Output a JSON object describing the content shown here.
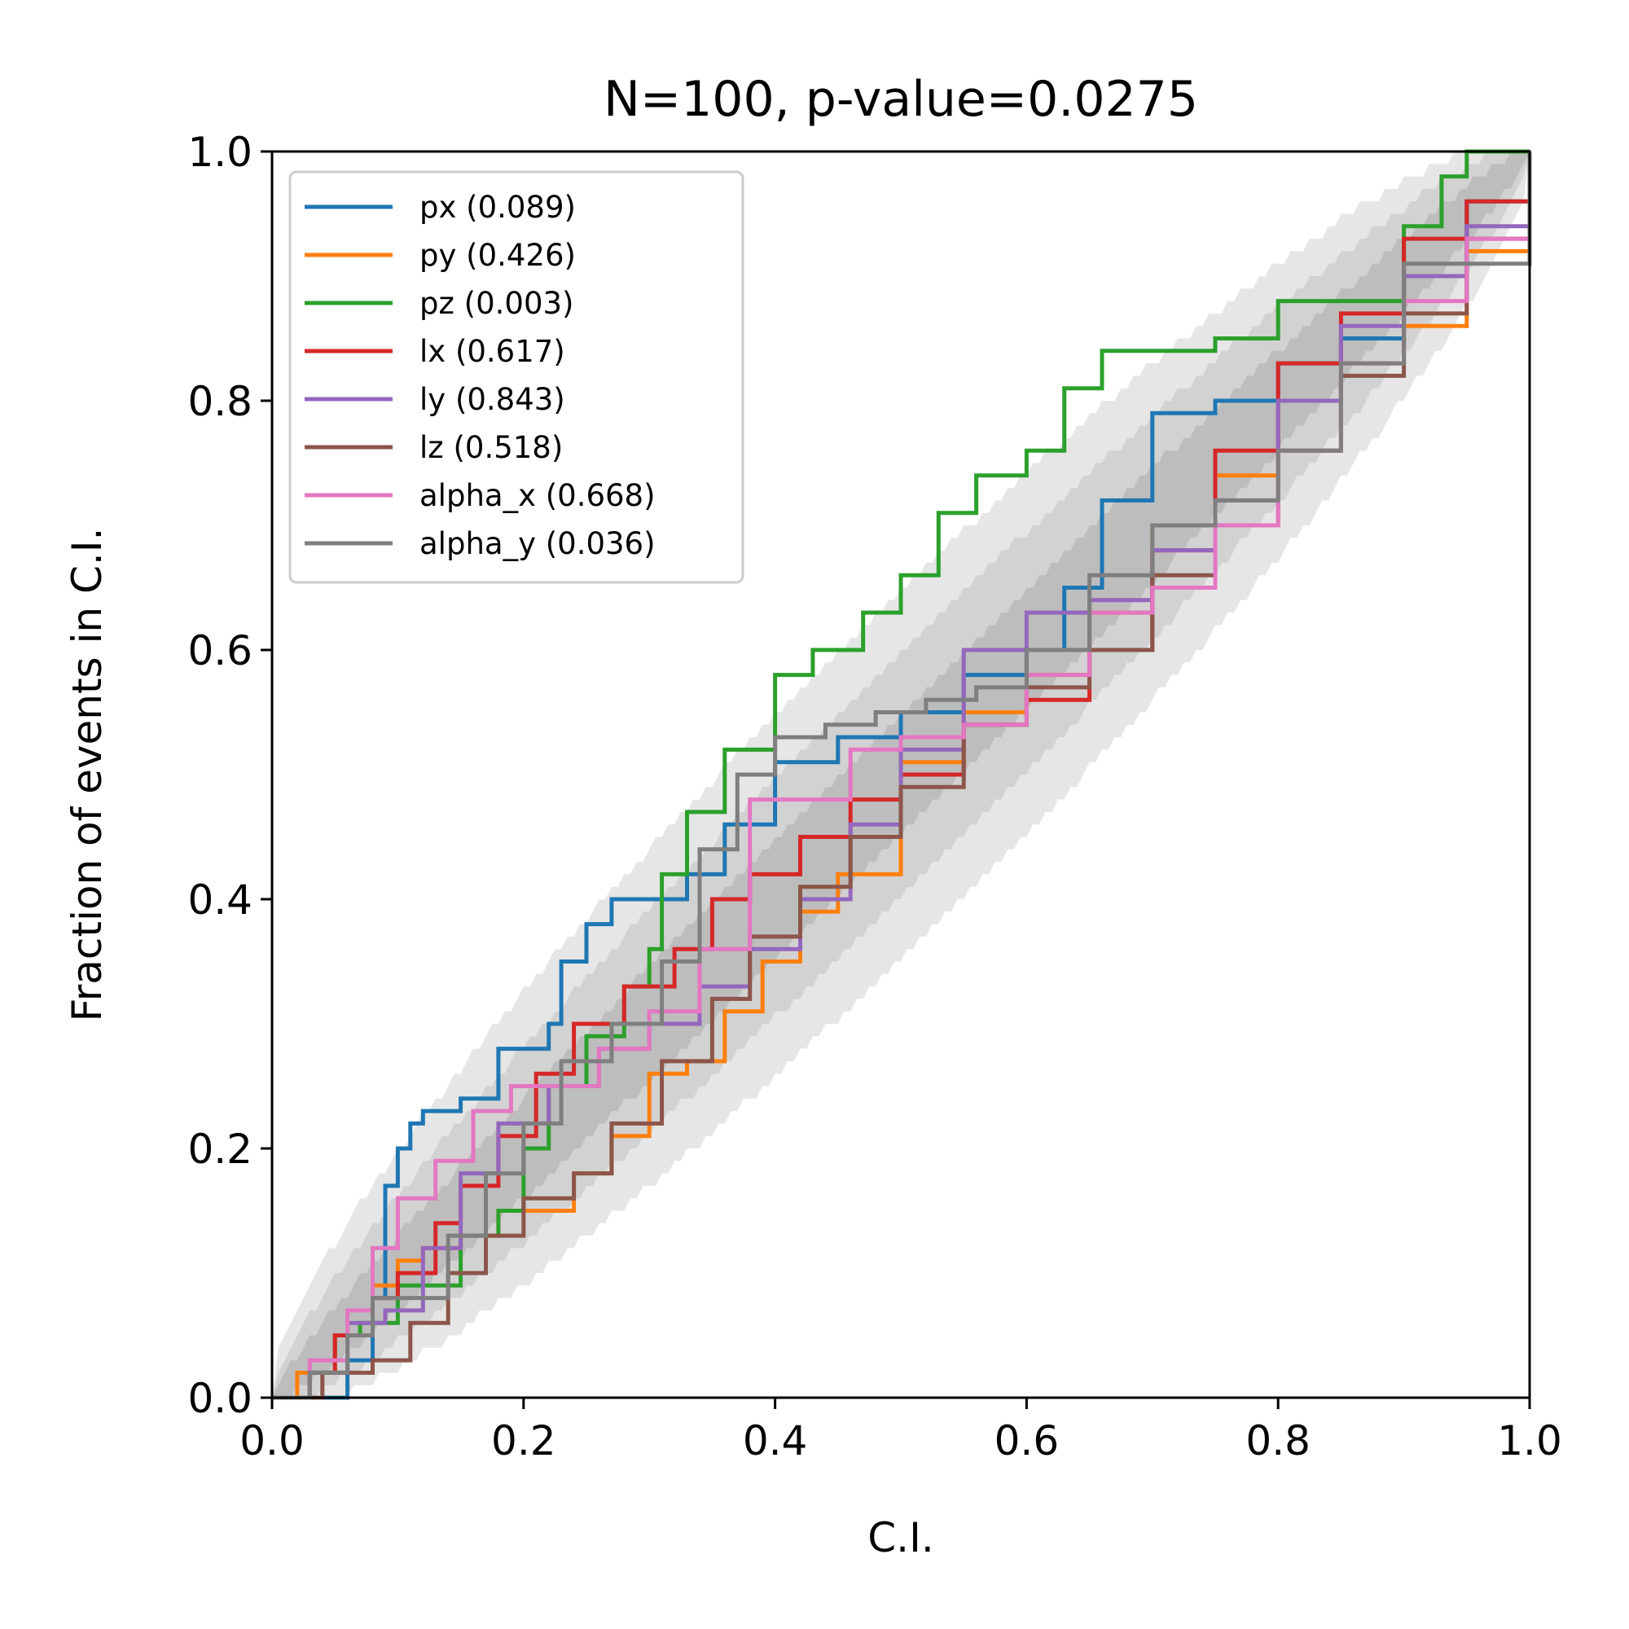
{
  "chart_data": {
    "type": "line",
    "title": "N=100, p-value=0.0275",
    "xlabel": "C.I.",
    "ylabel": "Fraction of events in C.I.",
    "xlim": [
      0.0,
      1.0
    ],
    "ylim": [
      0.0,
      1.0
    ],
    "x_ticks": [
      "0.0",
      "0.2",
      "0.4",
      "0.6",
      "0.8",
      "1.0"
    ],
    "y_ticks": [
      "0.0",
      "0.2",
      "0.4",
      "0.6",
      "0.8",
      "1.0"
    ],
    "grid": false,
    "legend_position": "upper-left",
    "confidence_bands": {
      "n": 100,
      "levels": [
        0.68,
        0.95,
        0.997
      ],
      "colors": [
        "#bdbdbd",
        "#d2d2d2",
        "#e6e6e6"
      ]
    },
    "series": [
      {
        "name": "px (0.089)",
        "color": "#1f77b4",
        "x": [
          0.0,
          0.04,
          0.06,
          0.08,
          0.09,
          0.1,
          0.11,
          0.12,
          0.15,
          0.18,
          0.22,
          0.23,
          0.25,
          0.27,
          0.3,
          0.33,
          0.36,
          0.4,
          0.45,
          0.5,
          0.55,
          0.6,
          0.63,
          0.66,
          0.7,
          0.75,
          0.8,
          0.85,
          0.9,
          0.95,
          1.0
        ],
        "y": [
          0.0,
          0.0,
          0.03,
          0.08,
          0.17,
          0.2,
          0.22,
          0.23,
          0.24,
          0.28,
          0.3,
          0.35,
          0.38,
          0.4,
          0.4,
          0.42,
          0.46,
          0.51,
          0.53,
          0.55,
          0.58,
          0.6,
          0.65,
          0.72,
          0.79,
          0.8,
          0.83,
          0.85,
          0.9,
          0.96,
          1.0
        ]
      },
      {
        "name": "py (0.426)",
        "color": "#ff7f0e",
        "x": [
          0.0,
          0.02,
          0.05,
          0.08,
          0.1,
          0.12,
          0.15,
          0.18,
          0.2,
          0.24,
          0.27,
          0.3,
          0.33,
          0.36,
          0.39,
          0.42,
          0.45,
          0.5,
          0.55,
          0.6,
          0.65,
          0.7,
          0.75,
          0.8,
          0.85,
          0.9,
          0.95,
          1.0
        ],
        "y": [
          0.0,
          0.02,
          0.05,
          0.09,
          0.11,
          0.12,
          0.13,
          0.15,
          0.15,
          0.18,
          0.21,
          0.26,
          0.27,
          0.31,
          0.35,
          0.39,
          0.42,
          0.51,
          0.55,
          0.58,
          0.63,
          0.7,
          0.74,
          0.76,
          0.83,
          0.86,
          0.92,
          1.0
        ]
      },
      {
        "name": "pz (0.003)",
        "color": "#2ca02c",
        "x": [
          0.0,
          0.03,
          0.05,
          0.07,
          0.1,
          0.15,
          0.18,
          0.2,
          0.22,
          0.25,
          0.28,
          0.3,
          0.31,
          0.33,
          0.36,
          0.4,
          0.43,
          0.47,
          0.5,
          0.53,
          0.56,
          0.6,
          0.63,
          0.66,
          0.7,
          0.75,
          0.8,
          0.85,
          0.9,
          0.93,
          0.95,
          1.0
        ],
        "y": [
          0.0,
          0.02,
          0.05,
          0.06,
          0.09,
          0.13,
          0.15,
          0.2,
          0.25,
          0.29,
          0.33,
          0.36,
          0.42,
          0.47,
          0.52,
          0.58,
          0.6,
          0.63,
          0.66,
          0.71,
          0.74,
          0.76,
          0.81,
          0.84,
          0.84,
          0.85,
          0.88,
          0.88,
          0.94,
          0.98,
          1.0,
          1.0
        ]
      },
      {
        "name": "lx (0.617)",
        "color": "#d62728",
        "x": [
          0.0,
          0.03,
          0.05,
          0.08,
          0.1,
          0.13,
          0.15,
          0.18,
          0.21,
          0.24,
          0.28,
          0.32,
          0.35,
          0.38,
          0.42,
          0.46,
          0.5,
          0.55,
          0.6,
          0.65,
          0.7,
          0.75,
          0.8,
          0.85,
          0.9,
          0.95,
          1.0
        ],
        "y": [
          0.0,
          0.02,
          0.05,
          0.08,
          0.1,
          0.14,
          0.17,
          0.21,
          0.26,
          0.3,
          0.33,
          0.36,
          0.4,
          0.42,
          0.45,
          0.48,
          0.5,
          0.54,
          0.56,
          0.6,
          0.68,
          0.76,
          0.83,
          0.87,
          0.93,
          0.96,
          1.0
        ]
      },
      {
        "name": "ly (0.843)",
        "color": "#9467bd",
        "x": [
          0.0,
          0.03,
          0.06,
          0.09,
          0.12,
          0.15,
          0.18,
          0.22,
          0.26,
          0.3,
          0.34,
          0.38,
          0.42,
          0.46,
          0.5,
          0.55,
          0.6,
          0.65,
          0.7,
          0.75,
          0.8,
          0.85,
          0.9,
          0.95,
          1.0
        ],
        "y": [
          0.0,
          0.02,
          0.06,
          0.07,
          0.12,
          0.18,
          0.22,
          0.25,
          0.28,
          0.3,
          0.33,
          0.36,
          0.4,
          0.46,
          0.52,
          0.6,
          0.63,
          0.64,
          0.68,
          0.72,
          0.8,
          0.86,
          0.9,
          0.94,
          1.0
        ]
      },
      {
        "name": "lz (0.518)",
        "color": "#8c564b",
        "x": [
          0.0,
          0.04,
          0.08,
          0.11,
          0.14,
          0.17,
          0.2,
          0.24,
          0.27,
          0.31,
          0.35,
          0.38,
          0.42,
          0.46,
          0.5,
          0.55,
          0.6,
          0.65,
          0.7,
          0.75,
          0.8,
          0.85,
          0.9,
          0.95,
          1.0
        ],
        "y": [
          0.0,
          0.02,
          0.03,
          0.06,
          0.1,
          0.13,
          0.16,
          0.18,
          0.22,
          0.27,
          0.32,
          0.37,
          0.41,
          0.45,
          0.49,
          0.54,
          0.57,
          0.6,
          0.66,
          0.7,
          0.76,
          0.82,
          0.87,
          0.93,
          1.0
        ]
      },
      {
        "name": "alpha_x (0.668)",
        "color": "#e377c2",
        "x": [
          0.0,
          0.03,
          0.06,
          0.08,
          0.1,
          0.13,
          0.16,
          0.19,
          0.22,
          0.26,
          0.3,
          0.34,
          0.38,
          0.42,
          0.46,
          0.5,
          0.55,
          0.6,
          0.65,
          0.7,
          0.75,
          0.8,
          0.85,
          0.9,
          0.95,
          1.0
        ],
        "y": [
          0.0,
          0.03,
          0.07,
          0.12,
          0.16,
          0.19,
          0.23,
          0.25,
          0.25,
          0.28,
          0.31,
          0.36,
          0.48,
          0.48,
          0.52,
          0.53,
          0.54,
          0.58,
          0.63,
          0.65,
          0.7,
          0.76,
          0.83,
          0.88,
          0.93,
          1.0
        ]
      },
      {
        "name": "alpha_y (0.036)",
        "color": "#7f7f7f",
        "x": [
          0.0,
          0.03,
          0.06,
          0.08,
          0.11,
          0.14,
          0.17,
          0.2,
          0.23,
          0.27,
          0.31,
          0.34,
          0.37,
          0.4,
          0.44,
          0.48,
          0.52,
          0.56,
          0.6,
          0.65,
          0.7,
          0.75,
          0.8,
          0.85,
          0.9,
          0.95,
          1.0
        ],
        "y": [
          0.0,
          0.02,
          0.05,
          0.08,
          0.08,
          0.13,
          0.18,
          0.22,
          0.27,
          0.3,
          0.35,
          0.44,
          0.5,
          0.53,
          0.54,
          0.55,
          0.56,
          0.57,
          0.6,
          0.66,
          0.7,
          0.72,
          0.76,
          0.83,
          0.91,
          0.91,
          1.0
        ]
      }
    ]
  }
}
